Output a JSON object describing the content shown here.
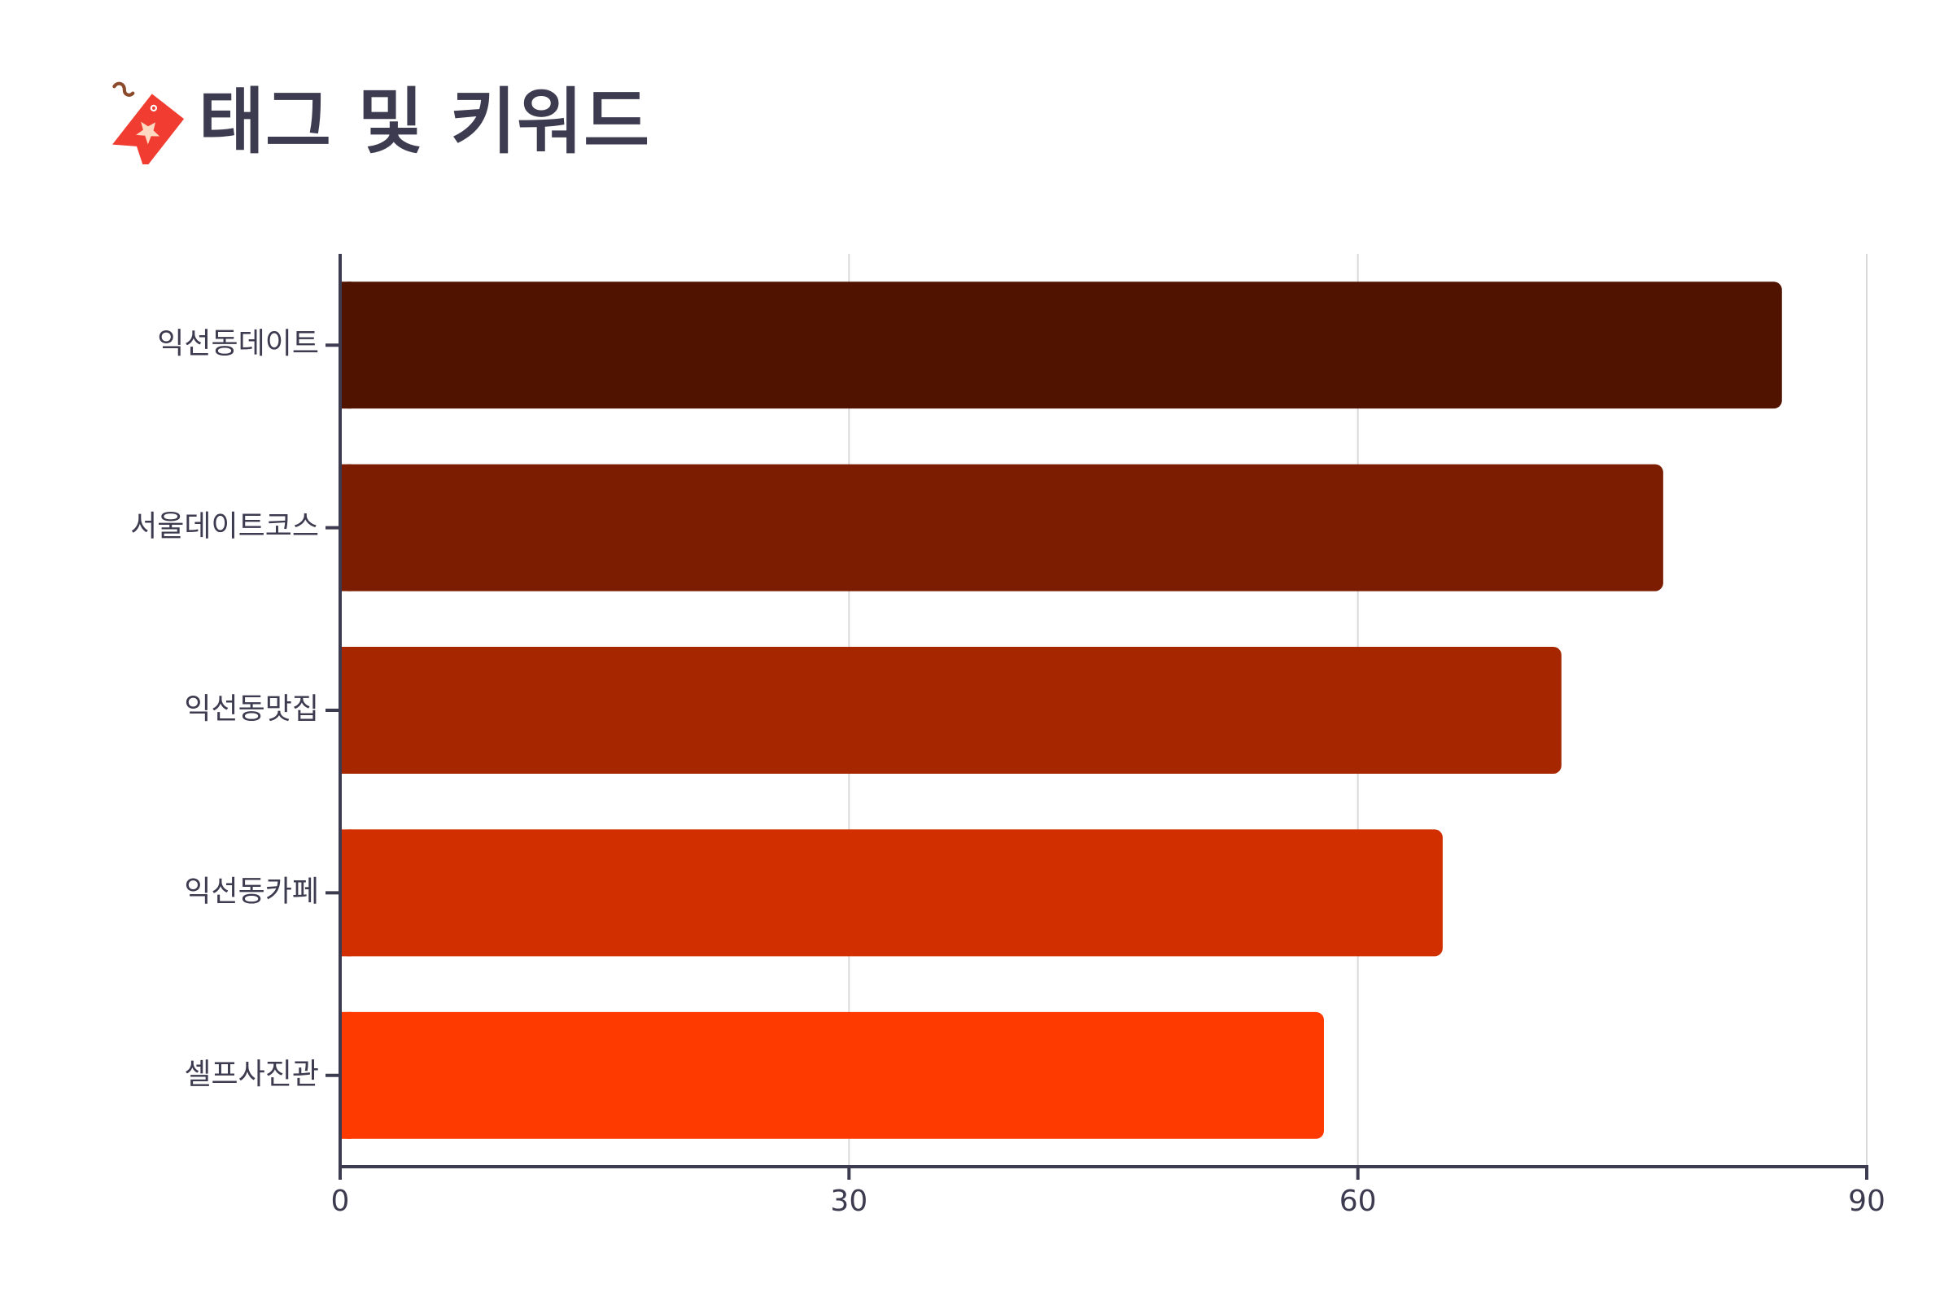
{
  "header": {
    "title": "태그 및 키워드",
    "icon": "bookmark-tag-icon"
  },
  "chart_data": {
    "type": "bar",
    "orientation": "horizontal",
    "categories": [
      "익선동데이트",
      "서울데이트코스",
      "익선동맛집",
      "익선동카페",
      "셀프사진관"
    ],
    "values": [
      85,
      78,
      72,
      65,
      58
    ],
    "colors": [
      "#501300",
      "#7c1c00",
      "#a62600",
      "#d12f00",
      "#ff3a00"
    ],
    "xlim": [
      0,
      90
    ],
    "xticks": [
      0,
      30,
      60,
      90
    ],
    "grid": true,
    "legend": "none",
    "title": "",
    "xlabel": "",
    "ylabel": ""
  }
}
